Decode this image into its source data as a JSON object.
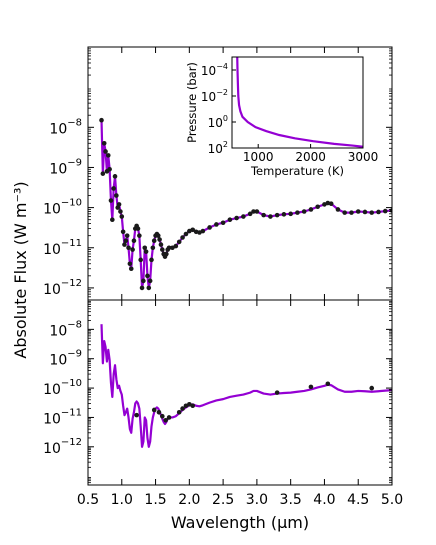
{
  "colors": {
    "model": "#9400d3",
    "observed_points": "#1a1a1a",
    "axes": "#000000",
    "background": "#ffffff"
  },
  "chart_data": [
    {
      "type": "line",
      "panel": "top",
      "xlabel": "Wavelength (μm)",
      "ylabel": "Absolute Flux (W m⁻³)",
      "xlim": [
        0.5,
        5.0
      ],
      "ylim": [
        5e-13,
        1e-06
      ],
      "yscale": "log",
      "x_ticks": [
        "0.5",
        "1.0",
        "1.5",
        "2.0",
        "2.5",
        "3.0",
        "3.5",
        "4.0",
        "4.5",
        "5.0"
      ],
      "y_ticks": [
        {
          "base": "10",
          "exp": "−12",
          "value": 1e-12
        },
        {
          "base": "10",
          "exp": "−11",
          "value": 1e-11
        },
        {
          "base": "10",
          "exp": "−10",
          "value": 1e-10
        },
        {
          "base": "10",
          "exp": "−9",
          "value": 1e-09
        },
        {
          "base": "10",
          "exp": "−8",
          "value": 1e-08
        }
      ],
      "series": [
        {
          "role": "model",
          "style": "line",
          "x": [
            0.7,
            0.72,
            0.74,
            0.76,
            0.78,
            0.8,
            0.82,
            0.84,
            0.86,
            0.88,
            0.9,
            0.92,
            0.94,
            0.96,
            0.98,
            1.0,
            1.02,
            1.04,
            1.06,
            1.08,
            1.1,
            1.12,
            1.14,
            1.16,
            1.18,
            1.2,
            1.22,
            1.24,
            1.26,
            1.28,
            1.3,
            1.32,
            1.34,
            1.36,
            1.38,
            1.4,
            1.42,
            1.44,
            1.46,
            1.48,
            1.5,
            1.52,
            1.54,
            1.56,
            1.58,
            1.6,
            1.62,
            1.64,
            1.66,
            1.68,
            1.7,
            1.75,
            1.8,
            1.85,
            1.9,
            1.95,
            2.0,
            2.05,
            2.1,
            2.15,
            2.2,
            2.3,
            2.4,
            2.5,
            2.6,
            2.7,
            2.8,
            2.9,
            2.95,
            3.0,
            3.1,
            3.2,
            3.3,
            3.4,
            3.5,
            3.6,
            3.7,
            3.8,
            3.9,
            4.0,
            4.05,
            4.1,
            4.2,
            4.3,
            4.4,
            4.5,
            4.6,
            4.7,
            4.8,
            4.9,
            5.0
          ],
          "y": [
            1.5e-08,
            7e-10,
            4e-09,
            2.5e-09,
            8e-10,
            2e-09,
            9e-10,
            1.5e-10,
            5e-11,
            3e-10,
            6e-10,
            2e-10,
            1e-10,
            1.2e-10,
            8e-11,
            6e-11,
            2.5e-11,
            1.2e-11,
            1.5e-11,
            2e-11,
            1e-11,
            4e-12,
            3e-12,
            9e-12,
            1.5e-11,
            3e-11,
            3.5e-11,
            3e-11,
            2e-11,
            5e-12,
            1e-12,
            1.5e-12,
            1e-11,
            8e-12,
            2e-12,
            1e-12,
            1.5e-12,
            5e-12,
            1e-11,
            1.5e-11,
            2e-11,
            2.2e-11,
            2e-11,
            1.6e-11,
            1.2e-11,
            9e-12,
            7e-12,
            6e-12,
            7e-12,
            9e-12,
            1e-11,
            1e-11,
            1.1e-11,
            1.4e-11,
            1.8e-11,
            2.2e-11,
            2.6e-11,
            2.8e-11,
            2.5e-11,
            2.4e-11,
            2.6e-11,
            3.2e-11,
            3.8e-11,
            4.2e-11,
            5e-11,
            5.5e-11,
            6e-11,
            7e-11,
            8e-11,
            8e-11,
            6.5e-11,
            6e-11,
            6.5e-11,
            6.8e-11,
            7e-11,
            7.5e-11,
            8e-11,
            9e-11,
            1.05e-10,
            1.2e-10,
            1.3e-10,
            1.25e-10,
            9e-11,
            7.5e-11,
            7.5e-11,
            8e-11,
            7.8e-11,
            7.5e-11,
            7.8e-11,
            8.2e-11,
            8.5e-11
          ]
        },
        {
          "role": "observed",
          "style": "markers",
          "x": [
            0.7,
            0.72,
            0.74,
            0.76,
            0.78,
            0.8,
            0.82,
            0.84,
            0.86,
            0.88,
            0.9,
            0.92,
            0.94,
            0.96,
            0.98,
            1.0,
            1.02,
            1.04,
            1.06,
            1.08,
            1.1,
            1.12,
            1.14,
            1.16,
            1.18,
            1.2,
            1.22,
            1.24,
            1.26,
            1.28,
            1.3,
            1.32,
            1.34,
            1.36,
            1.38,
            1.4,
            1.42,
            1.44,
            1.46,
            1.48,
            1.5,
            1.52,
            1.54,
            1.56,
            1.58,
            1.6,
            1.62,
            1.64,
            1.66,
            1.68,
            1.7,
            1.75,
            1.8,
            1.85,
            1.9,
            1.95,
            2.0,
            2.05,
            2.1,
            2.15,
            2.2,
            2.3,
            2.4,
            2.5,
            2.6,
            2.7,
            2.8,
            2.9,
            2.95,
            3.0,
            3.1,
            3.2,
            3.3,
            3.4,
            3.5,
            3.6,
            3.7,
            3.8,
            3.9,
            4.0,
            4.05,
            4.1,
            4.2,
            4.3,
            4.4,
            4.5,
            4.6,
            4.7,
            4.8,
            4.9,
            5.0
          ],
          "y": [
            1.5e-08,
            7e-10,
            4e-09,
            2.5e-09,
            8e-10,
            2e-09,
            9e-10,
            1.5e-10,
            5e-11,
            3e-10,
            6e-10,
            2e-10,
            1e-10,
            1.2e-10,
            8e-11,
            6e-11,
            2.5e-11,
            1.2e-11,
            1.5e-11,
            2e-11,
            1e-11,
            4e-12,
            3e-12,
            9e-12,
            1.5e-11,
            3e-11,
            3.5e-11,
            3e-11,
            2e-11,
            5e-12,
            1e-12,
            1.5e-12,
            1e-11,
            8e-12,
            2e-12,
            1e-12,
            1.5e-12,
            5e-12,
            1e-11,
            1.5e-11,
            2e-11,
            2.2e-11,
            2e-11,
            1.6e-11,
            1.2e-11,
            9e-12,
            7e-12,
            6e-12,
            7e-12,
            9e-12,
            1e-11,
            1e-11,
            1.1e-11,
            1.4e-11,
            1.8e-11,
            2.2e-11,
            2.6e-11,
            2.8e-11,
            2.5e-11,
            2.4e-11,
            2.6e-11,
            3.2e-11,
            3.8e-11,
            4.2e-11,
            5e-11,
            5.5e-11,
            6e-11,
            7e-11,
            8e-11,
            8e-11,
            6.5e-11,
            6e-11,
            6.5e-11,
            6.8e-11,
            7e-11,
            7.5e-11,
            8e-11,
            9e-11,
            1.05e-10,
            1.2e-10,
            1.3e-10,
            1.25e-10,
            9e-11,
            7.5e-11,
            7.5e-11,
            8e-11,
            7.8e-11,
            7.5e-11,
            7.8e-11,
            8.2e-11,
            8.5e-11
          ]
        }
      ],
      "inset": {
        "type": "line",
        "xlabel": "Temperature (K)",
        "ylabel": "Pressure (bar)",
        "xlim": [
          500,
          3000
        ],
        "ylim": [
          100,
          1e-05
        ],
        "yscale": "log",
        "y_inverted": true,
        "x_ticks": [
          "1000",
          "2000",
          "3000"
        ],
        "y_ticks": [
          {
            "base": "10",
            "exp": "−4",
            "value": 0.0001
          },
          {
            "base": "10",
            "exp": "−2",
            "value": 0.01
          },
          {
            "base": "10",
            "exp": "0",
            "value": 1
          },
          {
            "base": "10",
            "exp": "2",
            "value": 100
          }
        ],
        "series": [
          {
            "role": "temperature-pressure profile",
            "x": [
              600,
              605,
              612,
              620,
              635,
              660,
              700,
              800,
              950,
              1150,
              1400,
              1700,
              2050,
              2450,
              2800,
              3000
            ],
            "y": [
              1e-05,
              0.0001,
              0.001,
              0.01,
              0.05,
              0.15,
              0.4,
              1,
              2.5,
              5,
              10,
              18,
              30,
              48,
              65,
              80
            ]
          }
        ]
      }
    },
    {
      "type": "line",
      "panel": "bottom",
      "xlabel": "Wavelength (μm)",
      "xlim": [
        0.5,
        5.0
      ],
      "ylim": [
        5e-14,
        1e-07
      ],
      "yscale": "log",
      "x_ticks": [
        "0.5",
        "1.0",
        "1.5",
        "2.0",
        "2.5",
        "3.0",
        "3.5",
        "4.0",
        "4.5",
        "5.0"
      ],
      "y_ticks": [
        {
          "base": "10",
          "exp": "−12",
          "value": 1e-12
        },
        {
          "base": "10",
          "exp": "−11",
          "value": 1e-11
        },
        {
          "base": "10",
          "exp": "−10",
          "value": 1e-10
        },
        {
          "base": "10",
          "exp": "−9",
          "value": 1e-09
        },
        {
          "base": "10",
          "exp": "−8",
          "value": 1e-08
        }
      ],
      "series": [
        {
          "role": "model",
          "style": "line",
          "x": [
            0.7,
            0.72,
            0.74,
            0.76,
            0.78,
            0.8,
            0.82,
            0.84,
            0.86,
            0.88,
            0.9,
            0.92,
            0.94,
            0.96,
            0.98,
            1.0,
            1.02,
            1.04,
            1.06,
            1.08,
            1.1,
            1.12,
            1.14,
            1.16,
            1.18,
            1.2,
            1.22,
            1.24,
            1.26,
            1.28,
            1.3,
            1.32,
            1.34,
            1.36,
            1.38,
            1.4,
            1.42,
            1.44,
            1.46,
            1.48,
            1.5,
            1.52,
            1.54,
            1.56,
            1.58,
            1.6,
            1.62,
            1.64,
            1.66,
            1.68,
            1.7,
            1.75,
            1.8,
            1.85,
            1.9,
            1.95,
            2.0,
            2.05,
            2.1,
            2.15,
            2.2,
            2.3,
            2.4,
            2.5,
            2.6,
            2.7,
            2.8,
            2.9,
            2.95,
            3.0,
            3.1,
            3.2,
            3.3,
            3.4,
            3.5,
            3.6,
            3.7,
            3.8,
            3.9,
            4.0,
            4.05,
            4.1,
            4.2,
            4.3,
            4.4,
            4.5,
            4.6,
            4.7,
            4.8,
            4.9,
            5.0
          ],
          "y": [
            1.5e-08,
            7e-10,
            4e-09,
            2.5e-09,
            8e-10,
            2e-09,
            9e-10,
            1.5e-10,
            5e-11,
            3e-10,
            6e-10,
            2e-10,
            1e-10,
            1.2e-10,
            8e-11,
            6e-11,
            2.5e-11,
            1.2e-11,
            1.5e-11,
            2e-11,
            1e-11,
            4e-12,
            3e-12,
            9e-12,
            1.5e-11,
            3e-11,
            3.5e-11,
            3e-11,
            2e-11,
            5e-12,
            1e-12,
            1.5e-12,
            1e-11,
            8e-12,
            2e-12,
            1e-12,
            1.5e-12,
            5e-12,
            1e-11,
            1.5e-11,
            2e-11,
            2.2e-11,
            2e-11,
            1.6e-11,
            1.2e-11,
            9e-12,
            7e-12,
            6e-12,
            7e-12,
            9e-12,
            1e-11,
            1e-11,
            1.1e-11,
            1.4e-11,
            1.8e-11,
            2.2e-11,
            2.6e-11,
            2.8e-11,
            2.5e-11,
            2.4e-11,
            2.6e-11,
            3.2e-11,
            3.8e-11,
            4.2e-11,
            5e-11,
            5.5e-11,
            6e-11,
            7e-11,
            8e-11,
            8e-11,
            6.5e-11,
            6e-11,
            6.5e-11,
            6.8e-11,
            7e-11,
            7.5e-11,
            8e-11,
            9e-11,
            1.05e-10,
            1.2e-10,
            1.3e-10,
            1.25e-10,
            9e-11,
            7.5e-11,
            7.5e-11,
            8e-11,
            7.8e-11,
            7.5e-11,
            7.8e-11,
            8.2e-11,
            8.5e-11
          ]
        },
        {
          "role": "observed",
          "style": "markers",
          "x": [
            1.22,
            1.48,
            1.55,
            1.6,
            1.65,
            1.7,
            1.85,
            1.9,
            1.95,
            2.0,
            2.05,
            3.3,
            3.8,
            4.05,
            4.7
          ],
          "y": [
            1.2e-11,
            1.8e-11,
            1.5e-11,
            1.1e-11,
            8e-12,
            1e-11,
            1.5e-11,
            2e-11,
            2.5e-11,
            2.8e-11,
            2.5e-11,
            7e-11,
            1.1e-10,
            1.4e-10,
            1e-10
          ]
        }
      ]
    }
  ]
}
